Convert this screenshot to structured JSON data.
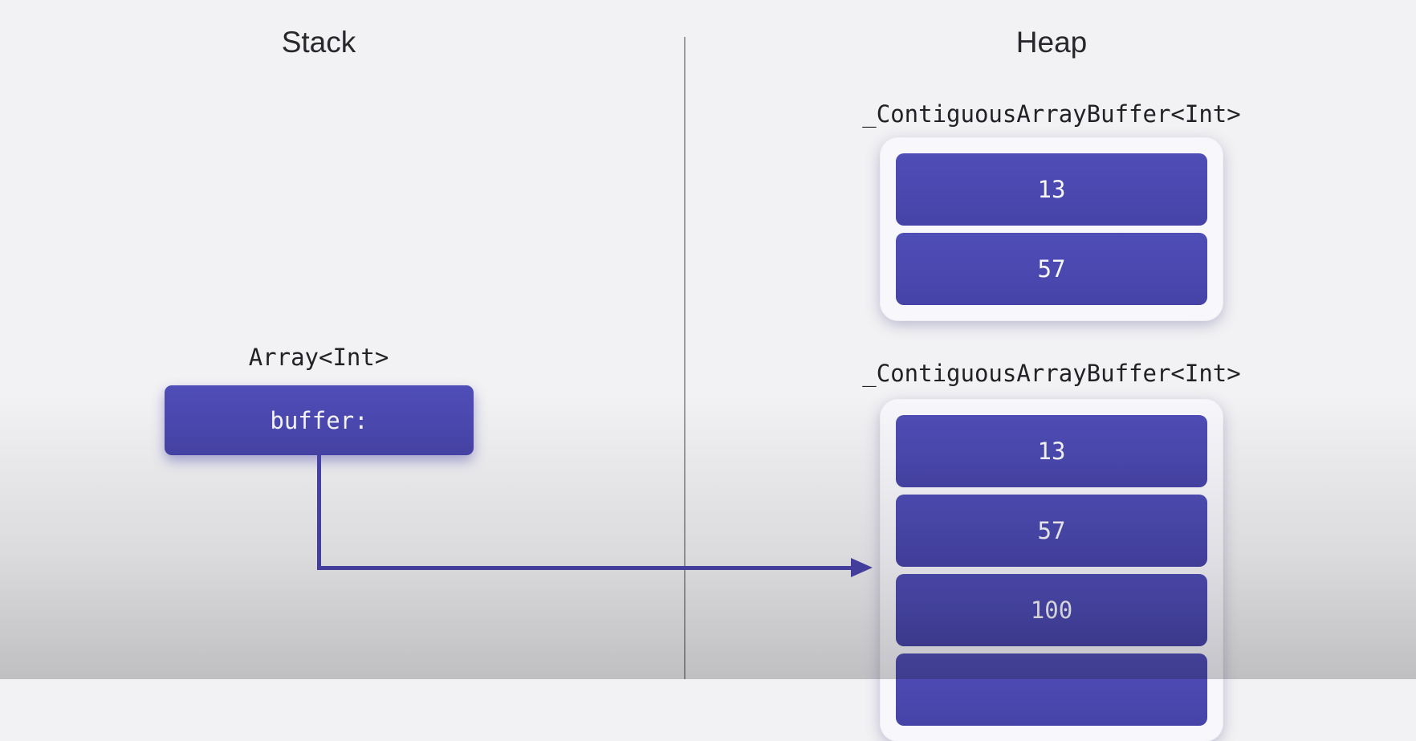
{
  "colors": {
    "background": "#f2f2f4",
    "container": "#f8f7fc",
    "cell": "#4b49b0",
    "cellText": "#f7f7fa",
    "arrow": "#4a44ad",
    "divider": "#9c9c9f",
    "label": "#222226",
    "title": "#28282c"
  },
  "stack": {
    "title": "Stack",
    "variable": {
      "type": "Array<Int>",
      "field": "buffer:"
    }
  },
  "heap": {
    "title": "Heap",
    "buffers": [
      {
        "type": "_ContiguousArrayBuffer<Int>",
        "cells": [
          "13",
          "57"
        ]
      },
      {
        "type": "_ContiguousArrayBuffer<Int>",
        "cells": [
          "13",
          "57",
          "100",
          ""
        ]
      }
    ]
  }
}
